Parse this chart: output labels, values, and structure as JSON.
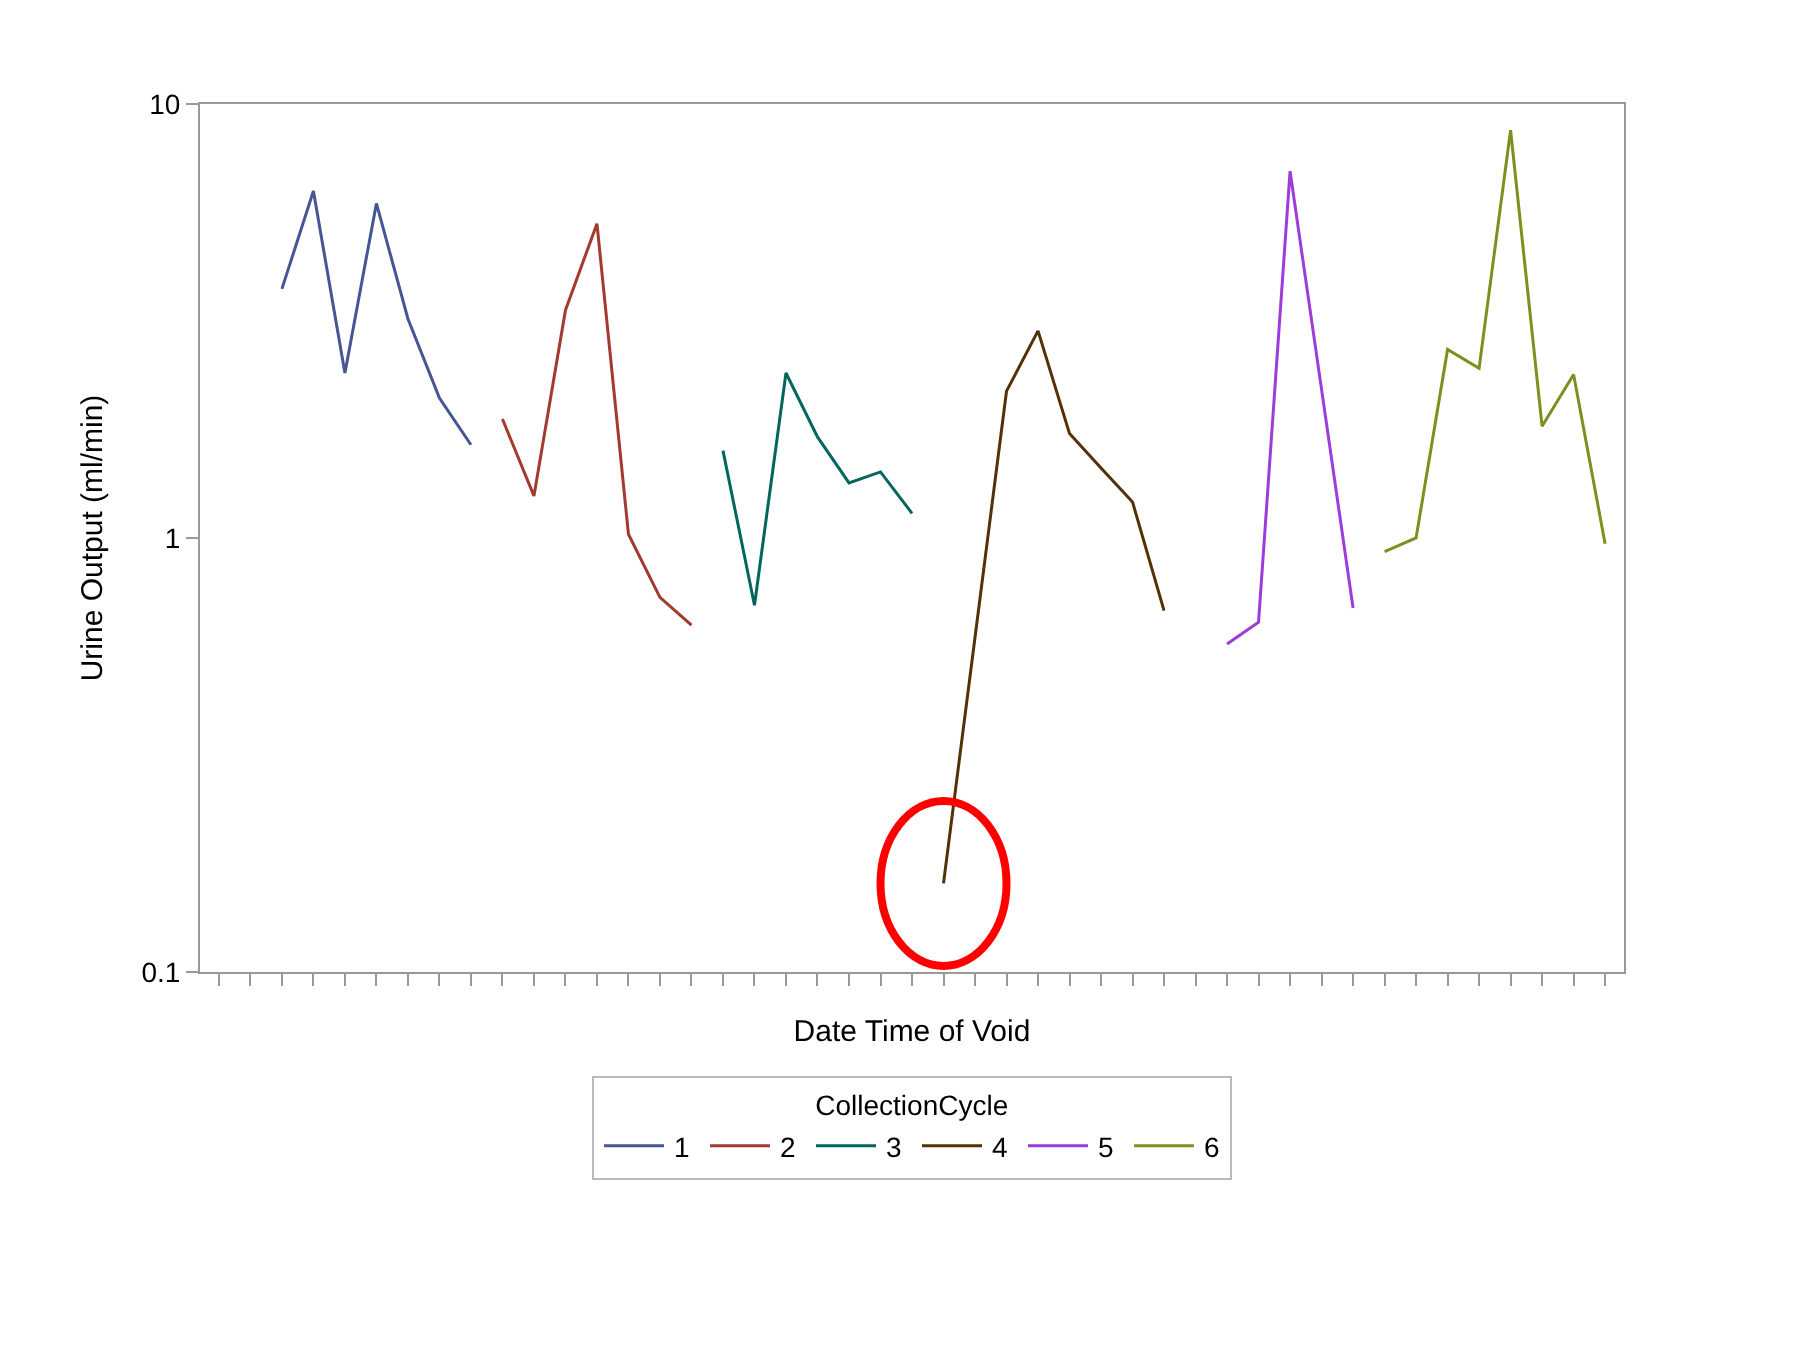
{
  "chart_data": {
    "type": "line",
    "xlabel": "Date Time of Void",
    "ylabel": "Urine Output (ml/min)",
    "legend_title": "CollectionCycle",
    "legend": "bottom",
    "log": true,
    "marker": "none",
    "line_style": "solid",
    "categories": [
      null,
      null,
      null,
      null,
      null,
      null,
      null,
      null,
      null,
      null,
      null,
      null,
      null,
      null,
      null,
      null,
      null,
      null,
      null,
      null,
      null,
      null,
      null,
      null,
      null,
      null,
      null,
      null,
      null,
      null,
      null,
      null,
      null,
      null,
      null,
      null,
      null,
      null,
      null,
      null,
      null,
      null,
      null,
      null,
      null
    ],
    "ylim": [
      0.1,
      10
    ],
    "yticks": [
      0.1,
      1,
      10
    ],
    "series": [
      {
        "name": "1",
        "color": "#445694",
        "values": [
          null,
          null,
          3.75,
          6.3,
          2.4,
          5.9,
          3.2,
          2.1,
          1.64,
          null,
          null,
          null,
          null,
          null,
          null,
          null,
          null,
          null,
          null,
          null,
          null,
          null,
          null,
          null,
          null,
          null,
          null,
          null,
          null,
          null,
          null,
          null,
          null,
          null,
          null,
          null,
          null,
          null,
          null,
          null,
          null,
          null,
          null,
          null,
          null
        ]
      },
      {
        "name": "2",
        "color": "#a23a2e",
        "values": [
          null,
          null,
          null,
          null,
          null,
          null,
          null,
          null,
          null,
          1.88,
          1.25,
          3.35,
          5.3,
          1.02,
          0.73,
          0.63,
          null,
          null,
          null,
          null,
          null,
          null,
          null,
          null,
          null,
          null,
          null,
          null,
          null,
          null,
          null,
          null,
          null,
          null,
          null,
          null,
          null,
          null,
          null,
          null,
          null,
          null,
          null,
          null,
          null
        ]
      },
      {
        "name": "3",
        "color": "#01665e",
        "values": [
          null,
          null,
          null,
          null,
          null,
          null,
          null,
          null,
          null,
          null,
          null,
          null,
          null,
          null,
          null,
          null,
          1.59,
          0.7,
          2.4,
          1.71,
          1.34,
          1.42,
          1.14,
          null,
          null,
          null,
          null,
          null,
          null,
          null,
          null,
          null,
          null,
          null,
          null,
          null,
          null,
          null,
          null,
          null,
          null,
          null,
          null,
          null,
          null
        ]
      },
      {
        "name": "4",
        "color": "#543005",
        "values": [
          null,
          null,
          null,
          null,
          null,
          null,
          null,
          null,
          null,
          null,
          null,
          null,
          null,
          null,
          null,
          null,
          null,
          null,
          null,
          null,
          null,
          null,
          null,
          0.16,
          0.59,
          2.18,
          3.0,
          1.74,
          1.45,
          1.21,
          0.68,
          null,
          null,
          null,
          null,
          null,
          null,
          null,
          null,
          null,
          null,
          null,
          null,
          null,
          null
        ]
      },
      {
        "name": "5",
        "color": "#9d3cdb",
        "values": [
          null,
          null,
          null,
          null,
          null,
          null,
          null,
          null,
          null,
          null,
          null,
          null,
          null,
          null,
          null,
          null,
          null,
          null,
          null,
          null,
          null,
          null,
          null,
          null,
          null,
          null,
          null,
          null,
          null,
          null,
          null,
          null,
          0.57,
          0.64,
          7.0,
          2.2,
          0.69,
          null,
          null,
          null,
          null,
          null,
          null,
          null,
          null
        ]
      },
      {
        "name": "6",
        "color": "#7f8e1f",
        "values": [
          null,
          null,
          null,
          null,
          null,
          null,
          null,
          null,
          null,
          null,
          null,
          null,
          null,
          null,
          null,
          null,
          null,
          null,
          null,
          null,
          null,
          null,
          null,
          null,
          null,
          null,
          null,
          null,
          null,
          null,
          null,
          null,
          null,
          null,
          null,
          null,
          null,
          0.93,
          1.0,
          2.72,
          2.46,
          8.7,
          1.81,
          2.38,
          0.97
        ]
      }
    ]
  }
}
